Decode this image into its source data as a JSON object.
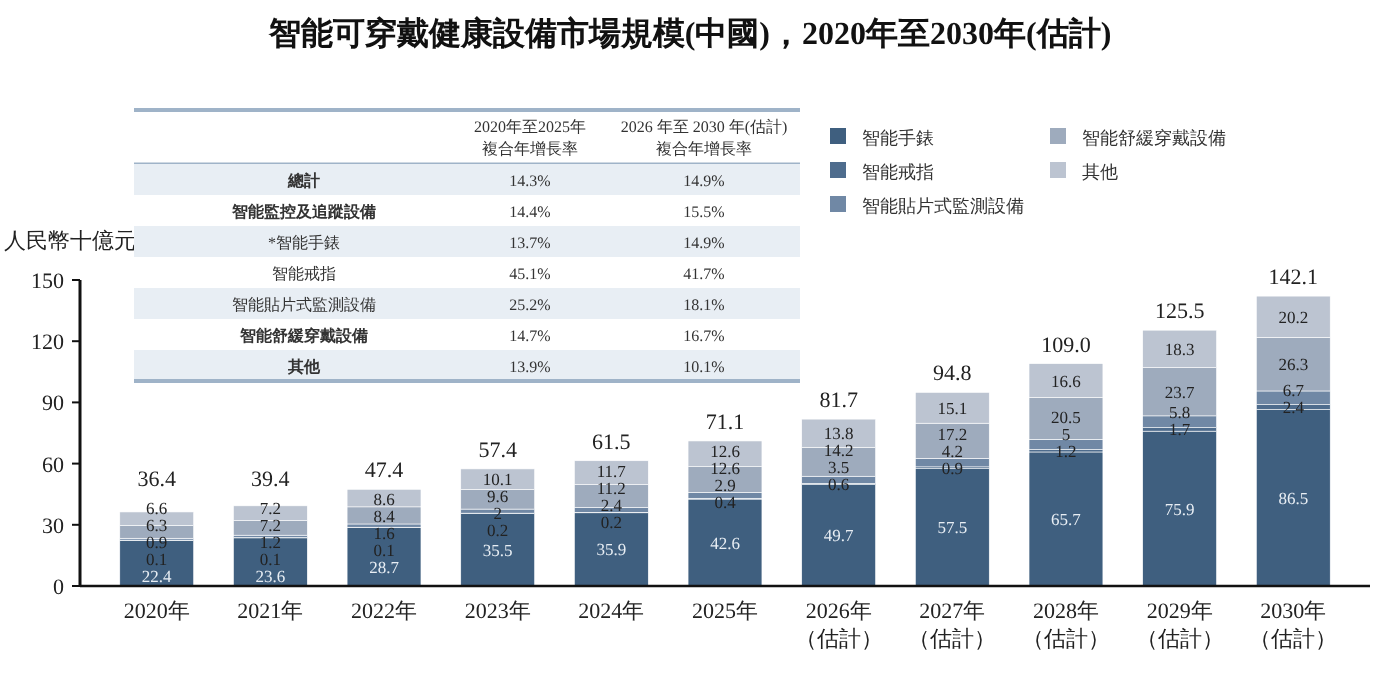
{
  "chart_data": [
    {
      "type": "bar",
      "title": "智能可穿戴健康設備市場規模(中國)，2020年至2030年(估計)",
      "ylabel": "人民幣十億元",
      "categories": [
        "2020年",
        "2021年",
        "2022年",
        "2023年",
        "2024年",
        "2025年",
        "2026年（估計）",
        "2027年（估計）",
        "2028年（估計）",
        "2029年（估計）",
        "2030年（估計）"
      ],
      "stacked": true,
      "series": [
        {
          "name": "智能手錶",
          "color": "#3f5f7f",
          "values": [
            22.4,
            23.6,
            28.7,
            35.5,
            35.9,
            42.6,
            49.7,
            57.5,
            65.7,
            75.9,
            86.5
          ]
        },
        {
          "name": "智能戒指",
          "color": "#4e6c8d",
          "values": [
            0.1,
            0.1,
            0.1,
            0.2,
            0.2,
            0.4,
            0.6,
            0.9,
            1.2,
            1.7,
            2.4
          ]
        },
        {
          "name": "智能貼片式監測設備",
          "color": "#7088a5",
          "values": [
            0.9,
            1.2,
            1.6,
            2.0,
            2.4,
            2.9,
            3.5,
            4.2,
            5.0,
            5.8,
            6.7
          ]
        },
        {
          "name": "智能舒緩穿戴設備",
          "color": "#9eabbd",
          "values": [
            6.3,
            7.2,
            8.4,
            9.6,
            11.2,
            12.6,
            14.2,
            17.2,
            20.5,
            23.7,
            26.3
          ]
        },
        {
          "name": "其他",
          "color": "#bcc4d1",
          "values": [
            6.6,
            7.2,
            8.6,
            10.1,
            11.7,
            12.6,
            13.8,
            15.1,
            16.6,
            18.3,
            20.2
          ]
        }
      ],
      "totals": [
        "36.4",
        "39.4",
        "47.4",
        "57.4",
        "61.5",
        "71.1",
        "81.7",
        "94.8",
        "109.0",
        "125.5",
        "142.1"
      ],
      "data_labels": true,
      "ylim": [
        0,
        150
      ],
      "yticks": [
        0,
        30,
        60,
        90,
        120,
        150
      ],
      "legend": "top right"
    },
    {
      "type": "other",
      "categories": [
        "總計",
        "智能監控及追蹤設備",
        "*智能手錶",
        "智能戒指",
        "智能貼片式監測設備",
        "智能舒緩穿戴設備",
        "其他"
      ],
      "series": [
        {
          "name": "2020年至2025年複合年增長率",
          "values": [
            14.3,
            14.4,
            13.7,
            45.1,
            25.2,
            14.7,
            13.9
          ],
          "value_labels": [
            "14.3%",
            "14.4%",
            "13.7%",
            "45.1%",
            "25.2%",
            "14.7%",
            "13.9%"
          ]
        },
        {
          "name": "2026 年至 2030 年(估計)複合年增長率",
          "values": [
            14.9,
            15.5,
            14.9,
            41.7,
            18.1,
            16.7,
            10.1
          ],
          "value_labels": [
            "14.9%",
            "15.5%",
            "14.9%",
            "41.7%",
            "18.1%",
            "16.7%",
            "10.1%"
          ]
        }
      ]
    }
  ]
}
